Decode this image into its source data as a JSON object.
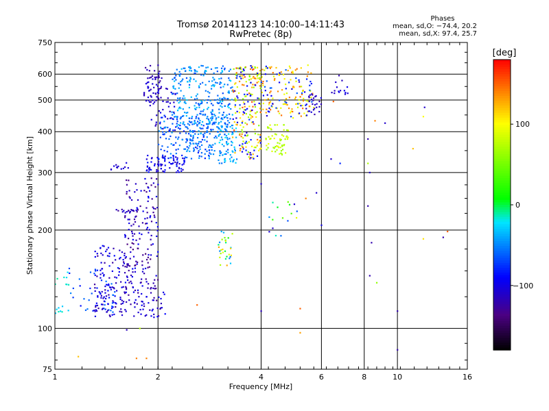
{
  "chart_data": {
    "type": "scatter",
    "title": "Tromsø 20141123 14:10:00–14:11:43",
    "subtitle": "RwPretec (8p)",
    "xlabel": "Frequency [MHz]",
    "ylabel": "Stationary phase Virtual Height [km]",
    "xscale": "log",
    "yscale": "log",
    "xlim": [
      1,
      16
    ],
    "ylim": [
      75,
      750
    ],
    "x_ticks": [
      1,
      2,
      4,
      6,
      8,
      10,
      16
    ],
    "x_tick_labels": [
      "1",
      "2",
      "4",
      "6",
      "8",
      "10",
      "16"
    ],
    "y_ticks": [
      75,
      100,
      200,
      300,
      400,
      500,
      600,
      750
    ],
    "y_tick_labels": [
      "75",
      "100",
      "200",
      "300",
      "400",
      "500",
      "600",
      "750"
    ],
    "grid": true,
    "phases": {
      "heading": "Phases",
      "line_o": "mean, sd,O: −74.4, 20.2",
      "line_x": "mean, sd,X:  97.4, 25.7"
    },
    "colorbar": {
      "label": "[deg]",
      "ticks": [
        100,
        0,
        -100
      ],
      "tick_labels": [
        "100",
        "0",
        "−100"
      ],
      "range": [
        -180,
        180
      ],
      "colors": [
        "#000000",
        "#4b0082",
        "#0000ff",
        "#00ffff",
        "#00ff00",
        "#ffff00",
        "#ff8000",
        "#ff0000"
      ]
    },
    "point_groups": [
      {
        "x": [
          1.82,
          2.05
        ],
        "y": [
          480,
          640
        ],
        "n": 60,
        "phase": [
          -130,
          -100
        ]
      },
      {
        "x": [
          1.9,
          2.25
        ],
        "y": [
          400,
          560
        ],
        "n": 40,
        "phase": [
          -120,
          -95
        ]
      },
      {
        "x": [
          1.85,
          2.4
        ],
        "y": [
          300,
          340
        ],
        "n": 80,
        "phase": [
          -115,
          -80
        ]
      },
      {
        "x": [
          2.0,
          2.9
        ],
        "y": [
          330,
          460
        ],
        "n": 150,
        "phase": [
          -85,
          -40
        ]
      },
      {
        "x": [
          2.2,
          3.3
        ],
        "y": [
          420,
          640
        ],
        "n": 250,
        "phase": [
          -70,
          -25
        ]
      },
      {
        "x": [
          2.4,
          3.3
        ],
        "y": [
          340,
          460
        ],
        "n": 120,
        "phase": [
          -75,
          -35
        ]
      },
      {
        "x": [
          3.0,
          3.4
        ],
        "y": [
          320,
          420
        ],
        "n": 60,
        "phase": [
          -60,
          -20
        ]
      },
      {
        "x": [
          3.3,
          4.0
        ],
        "y": [
          330,
          640
        ],
        "n": 160,
        "phase": [
          50,
          160
        ]
      },
      {
        "x": [
          3.3,
          4.0
        ],
        "y": [
          330,
          640
        ],
        "n": 60,
        "phase": [
          -110,
          -70
        ]
      },
      {
        "x": [
          4.0,
          5.7
        ],
        "y": [
          440,
          640
        ],
        "n": 110,
        "phase": [
          80,
          150
        ]
      },
      {
        "x": [
          4.0,
          5.7
        ],
        "y": [
          440,
          640
        ],
        "n": 50,
        "phase": [
          -110,
          -60
        ]
      },
      {
        "x": [
          4.1,
          4.8
        ],
        "y": [
          340,
          420
        ],
        "n": 60,
        "phase": [
          60,
          95
        ]
      },
      {
        "x": [
          5.4,
          6.0
        ],
        "y": [
          450,
          520
        ],
        "n": 25,
        "phase": [
          -130,
          -100
        ]
      },
      {
        "x": [
          6.4,
          7.2
        ],
        "y": [
          520,
          600
        ],
        "n": 15,
        "phase": [
          -120,
          -95
        ]
      },
      {
        "x": [
          1.45,
          1.65
        ],
        "y": [
          305,
          322
        ],
        "n": 12,
        "phase": [
          -115,
          -100
        ]
      },
      {
        "x": [
          1.5,
          1.75
        ],
        "y": [
          225,
          232
        ],
        "n": 15,
        "phase": [
          -130,
          -100
        ]
      },
      {
        "x": [
          1.6,
          2.0
        ],
        "y": [
          130,
          290
        ],
        "n": 170,
        "phase": [
          -140,
          -90
        ]
      },
      {
        "x": [
          1.3,
          1.65
        ],
        "y": [
          130,
          180
        ],
        "n": 80,
        "phase": [
          -130,
          -80
        ]
      },
      {
        "x": [
          1.1,
          1.5
        ],
        "y": [
          112,
          155
        ],
        "n": 40,
        "phase": [
          -90,
          -50
        ]
      },
      {
        "x": [
          1.3,
          2.1
        ],
        "y": [
          108,
          130
        ],
        "n": 110,
        "phase": [
          -130,
          -90
        ]
      },
      {
        "x": [
          3.0,
          3.3
        ],
        "y": [
          155,
          200
        ],
        "n": 30,
        "phase": [
          -60,
          130
        ]
      },
      {
        "x": [
          4.2,
          5.1
        ],
        "y": [
          190,
          250
        ],
        "n": 15,
        "phase": [
          -120,
          100
        ]
      },
      {
        "x": [
          1.0,
          1.1
        ],
        "y": [
          130,
          150
        ],
        "n": 8,
        "phase": [
          -30,
          -10
        ]
      },
      {
        "x": [
          1.0,
          1.1
        ],
        "y": [
          108,
          118
        ],
        "n": 8,
        "phase": [
          -30,
          -10
        ]
      }
    ],
    "points": [
      {
        "x": 1.17,
        "y": 82,
        "phase": 120
      },
      {
        "x": 1.62,
        "y": 99,
        "phase": -115
      },
      {
        "x": 1.77,
        "y": 100,
        "phase": 75
      },
      {
        "x": 1.73,
        "y": 81,
        "phase": 140
      },
      {
        "x": 1.85,
        "y": 81,
        "phase": 140
      },
      {
        "x": 2.6,
        "y": 118,
        "phase": 150
      },
      {
        "x": 4.0,
        "y": 113,
        "phase": -115
      },
      {
        "x": 5.2,
        "y": 115,
        "phase": 150
      },
      {
        "x": 5.2,
        "y": 97,
        "phase": 130
      },
      {
        "x": 8.3,
        "y": 145,
        "phase": -120
      },
      {
        "x": 8.7,
        "y": 138,
        "phase": 60
      },
      {
        "x": 8.4,
        "y": 183,
        "phase": -120
      },
      {
        "x": 10.0,
        "y": 113,
        "phase": -120
      },
      {
        "x": 10.0,
        "y": 86,
        "phase": -120
      },
      {
        "x": 11.9,
        "y": 188,
        "phase": 110
      },
      {
        "x": 13.6,
        "y": 190,
        "phase": -120
      },
      {
        "x": 14.0,
        "y": 198,
        "phase": 150
      },
      {
        "x": 8.2,
        "y": 237,
        "phase": -120
      },
      {
        "x": 8.3,
        "y": 300,
        "phase": -110
      },
      {
        "x": 8.2,
        "y": 320,
        "phase": 70
      },
      {
        "x": 8.2,
        "y": 380,
        "phase": -120
      },
      {
        "x": 8.6,
        "y": 432,
        "phase": 140
      },
      {
        "x": 9.2,
        "y": 425,
        "phase": -110
      },
      {
        "x": 11.1,
        "y": 355,
        "phase": 120
      },
      {
        "x": 12.0,
        "y": 475,
        "phase": -110
      },
      {
        "x": 11.9,
        "y": 445,
        "phase": 100
      },
      {
        "x": 6.4,
        "y": 330,
        "phase": -110
      },
      {
        "x": 6.5,
        "y": 495,
        "phase": 150
      },
      {
        "x": 6.0,
        "y": 207,
        "phase": -100
      },
      {
        "x": 5.8,
        "y": 260,
        "phase": -110
      },
      {
        "x": 5.4,
        "y": 250,
        "phase": 140
      },
      {
        "x": 5.0,
        "y": 240,
        "phase": -110
      },
      {
        "x": 4.0,
        "y": 277,
        "phase": -110
      },
      {
        "x": 6.8,
        "y": 320,
        "phase": -80
      }
    ]
  }
}
